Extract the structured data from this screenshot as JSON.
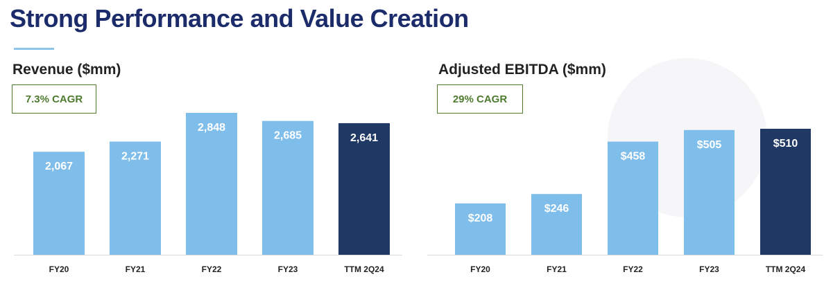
{
  "page": {
    "title": "Strong Performance and Value Creation"
  },
  "colors": {
    "bar_light": "#7fbdeb",
    "bar_dark": "#203864",
    "title": "#1c2c6b",
    "cagr": "#4e7a2e"
  },
  "chart_data": [
    {
      "type": "bar",
      "title": "Revenue ($mm)",
      "annotation": "7.3% CAGR",
      "categories": [
        "FY20",
        "FY21",
        "FY22",
        "FY23",
        "TTM 2Q24"
      ],
      "values": [
        2067,
        2271,
        2848,
        2685,
        2641
      ],
      "data_labels": [
        "2,067",
        "2,271",
        "2,848",
        "2,685",
        "2,641"
      ],
      "highlight_index": 4,
      "ylim": [
        0,
        2848
      ],
      "xlabel": "",
      "ylabel": "",
      "grid": false
    },
    {
      "type": "bar",
      "title": "Adjusted EBITDA ($mm)",
      "annotation": "29% CAGR",
      "categories": [
        "FY20",
        "FY21",
        "FY22",
        "FY23",
        "TTM 2Q24"
      ],
      "values": [
        208,
        246,
        458,
        505,
        510
      ],
      "data_labels": [
        "$208",
        "$246",
        "$458",
        "$505",
        "$510"
      ],
      "highlight_index": 4,
      "ylim": [
        0,
        510
      ],
      "xlabel": "",
      "ylabel": "",
      "grid": false
    }
  ]
}
